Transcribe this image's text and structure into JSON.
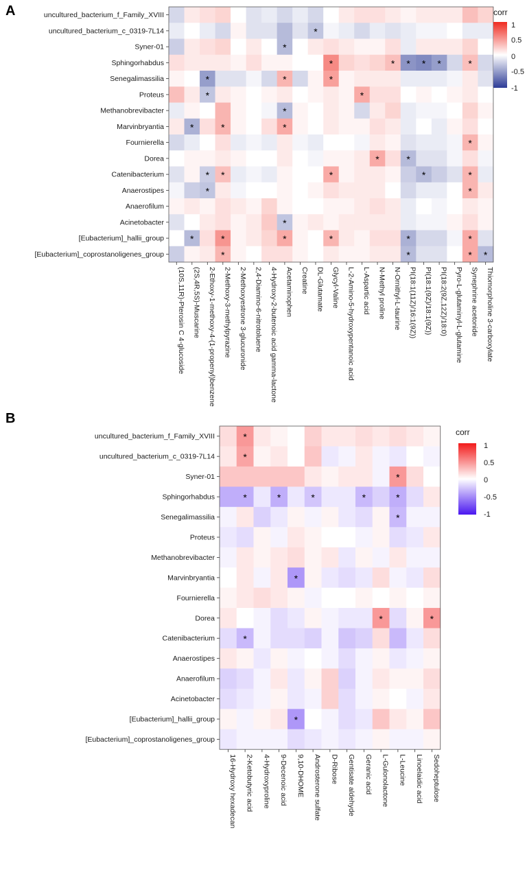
{
  "chart_data": [
    {
      "panel": "A",
      "type": "heatmap",
      "legend_title": "corr",
      "legend_ticks": [
        "1",
        "0.5",
        "0",
        "-0.5",
        "-1"
      ],
      "color_scale": {
        "low": "#2d3c96",
        "mid": "#ffffff",
        "high": "#ef2b20",
        "min": -1,
        "max": 1
      },
      "rows": [
        "uncultured_bacterium_f_Family_XVIII",
        "uncultured_bacterium_c_0319-7L14",
        "Syner-01",
        "Sphingorhabdus",
        "Senegalimassilia",
        "Proteus",
        "Methanobrevibacter",
        "Marvinbryantia",
        "Fournierella",
        "Dorea",
        "Catenibacterium",
        "Anaerostipes",
        "Anaerofilum",
        "Acinetobacter",
        "[Eubacterium]_hallii_group",
        "[Eubacterium]_coprostanoligenes_group"
      ],
      "columns": [
        "(10S,11R)-Pterosin C 4-glucoside",
        "(2S,4R,5S)-Muscarine",
        "2-Ethoxy-1-methoxy-4-(1-propenyl)benzene",
        "2-Methoxy-3-methylpyrazine",
        "2-Methoxyestrone 3-glucuronide",
        "2,4-Diamino-6-nitrotoluene",
        "4-Hydroxy-2-butenoic acid gamma-lactone",
        "Acetaminophen",
        "Creatine",
        "DL-Glutamate",
        "Glycyl-Valine",
        "L-2-Amino-5-hydroxypentanoic acid",
        "L-Aspartic acid",
        "N-Methyl proline",
        "N-Ornithyl-L-taurine",
        "PI(18:1(11Z)/16:1(9Z))",
        "PI(18:1(9Z)/18:1(9Z))",
        "PI(18:2(9Z,12Z)/18:0)",
        "Pyro-L-glutaminyl-L-glutamine",
        "Synephrine acetonide",
        "Thiomorpholine 3-carboxylate"
      ],
      "values": [
        [
          -0.2,
          0.1,
          0.15,
          0.2,
          0.0,
          -0.15,
          -0.1,
          -0.2,
          -0.1,
          -0.2,
          0.0,
          0.1,
          0.15,
          0.15,
          0.1,
          0.05,
          0.1,
          0.1,
          0.1,
          0.3,
          0.2
        ],
        [
          -0.1,
          0.0,
          -0.1,
          -0.2,
          0.05,
          -0.15,
          -0.15,
          -0.35,
          -0.15,
          -0.3,
          -0.05,
          -0.1,
          -0.2,
          -0.1,
          -0.15,
          -0.1,
          -0.05,
          -0.05,
          0.0,
          -0.1,
          -0.1
        ],
        [
          -0.25,
          0.1,
          0.15,
          0.2,
          0.0,
          0.1,
          0.0,
          -0.35,
          0.0,
          0.1,
          0.15,
          0.1,
          0.05,
          0.05,
          0.15,
          -0.1,
          0.1,
          0.1,
          0.1,
          0.2,
          0.0
        ],
        [
          0.15,
          0.1,
          0.1,
          0.1,
          0.05,
          0.15,
          0.05,
          0.05,
          0.0,
          0.0,
          0.55,
          0.2,
          0.15,
          0.2,
          0.3,
          -0.55,
          -0.6,
          -0.5,
          -0.2,
          0.3,
          -0.2
        ],
        [
          0.05,
          0.0,
          -0.5,
          -0.15,
          -0.15,
          -0.05,
          -0.2,
          0.35,
          -0.2,
          0.05,
          0.45,
          0.05,
          0.1,
          0.1,
          0.1,
          -0.1,
          -0.1,
          -0.1,
          -0.05,
          0.1,
          -0.15
        ],
        [
          0.3,
          0.1,
          -0.3,
          0.1,
          0.05,
          0.0,
          0.05,
          0.1,
          0.0,
          0.05,
          0.1,
          0.05,
          0.4,
          0.15,
          0.15,
          0.0,
          0.05,
          0.0,
          0.05,
          0.1,
          0.0
        ],
        [
          -0.1,
          0.05,
          0.0,
          0.35,
          0.05,
          0.0,
          -0.05,
          -0.35,
          0.05,
          0.0,
          0.1,
          0.05,
          -0.2,
          0.1,
          0.2,
          -0.1,
          -0.05,
          -0.05,
          0.0,
          0.2,
          0.05
        ],
        [
          0.1,
          -0.4,
          0.15,
          0.35,
          0.05,
          0.0,
          0.15,
          0.4,
          0.05,
          0.0,
          0.1,
          0.05,
          0.05,
          0.15,
          0.1,
          -0.1,
          0.0,
          -0.1,
          0.05,
          0.15,
          0.0
        ],
        [
          -0.2,
          -0.1,
          0.0,
          0.15,
          -0.1,
          -0.05,
          -0.1,
          0.1,
          -0.05,
          -0.1,
          0.0,
          0.0,
          -0.05,
          0.1,
          0.05,
          -0.15,
          -0.1,
          -0.1,
          -0.05,
          0.35,
          0.05
        ],
        [
          0.0,
          0.05,
          0.05,
          0.1,
          0.05,
          0.0,
          0.0,
          0.1,
          0.0,
          -0.05,
          0.05,
          0.05,
          0.1,
          0.4,
          0.15,
          -0.35,
          -0.15,
          -0.15,
          -0.05,
          0.15,
          -0.05
        ],
        [
          -0.15,
          0.05,
          -0.25,
          0.3,
          -0.1,
          -0.05,
          -0.1,
          0.05,
          0.0,
          0.0,
          0.4,
          0.05,
          0.1,
          0.1,
          0.05,
          -0.25,
          -0.35,
          -0.25,
          -0.15,
          0.35,
          -0.1
        ],
        [
          -0.05,
          -0.25,
          -0.3,
          0.1,
          -0.05,
          0.0,
          0.0,
          0.05,
          0.0,
          0.05,
          0.15,
          0.1,
          0.1,
          0.1,
          0.0,
          -0.2,
          -0.1,
          -0.1,
          0.0,
          0.35,
          0.1
        ],
        [
          0.05,
          0.1,
          0.05,
          0.15,
          0.1,
          0.05,
          0.2,
          0.05,
          0.0,
          0.0,
          0.05,
          0.05,
          0.1,
          0.15,
          0.1,
          -0.1,
          0.0,
          -0.05,
          0.0,
          0.1,
          0.05
        ],
        [
          -0.15,
          0.0,
          0.1,
          0.15,
          0.05,
          0.1,
          0.25,
          -0.3,
          0.05,
          0.1,
          0.05,
          0.1,
          0.1,
          0.1,
          0.1,
          -0.1,
          -0.05,
          -0.05,
          0.05,
          0.15,
          0.05
        ],
        [
          0.0,
          -0.35,
          0.15,
          0.5,
          0.05,
          0.1,
          0.2,
          0.4,
          0.05,
          0.0,
          0.35,
          0.1,
          0.05,
          0.15,
          0.15,
          -0.4,
          -0.2,
          -0.2,
          -0.05,
          0.4,
          -0.15
        ],
        [
          -0.25,
          0.05,
          0.1,
          0.35,
          0.05,
          0.0,
          0.15,
          0.15,
          0.05,
          0.0,
          0.1,
          0.05,
          0.05,
          0.1,
          0.1,
          -0.35,
          -0.15,
          -0.15,
          0.0,
          0.4,
          -0.35
        ]
      ],
      "significant": [
        [],
        [
          9
        ],
        [
          7
        ],
        [
          10,
          14,
          15,
          16,
          17,
          19
        ],
        [
          2,
          7,
          10
        ],
        [
          2,
          12
        ],
        [
          7
        ],
        [
          1,
          3,
          7
        ],
        [
          19
        ],
        [
          13,
          15
        ],
        [
          2,
          3,
          10,
          16,
          19
        ],
        [
          2,
          19
        ],
        [],
        [
          7
        ],
        [
          1,
          3,
          7,
          10,
          15,
          19
        ],
        [
          3,
          15,
          19,
          20
        ]
      ]
    },
    {
      "panel": "B",
      "type": "heatmap",
      "legend_title": "corr",
      "legend_ticks": [
        "1",
        "0.5",
        "0",
        "-0.5",
        "-1"
      ],
      "color_scale": {
        "low": "#4a17f0",
        "mid": "#ffffff",
        "high": "#f21b1b",
        "min": -1,
        "max": 1
      },
      "rows": [
        "uncultured_bacterium_f_Family_XVIII",
        "uncultured_bacterium_c_0319-7L14",
        "Syner-01",
        "Sphingorhabdus",
        "Senegalimassilia",
        "Proteus",
        "Methanobrevibacter",
        "Marvinbryantia",
        "Fournierella",
        "Dorea",
        "Catenibacterium",
        "Anaerostipes",
        "Anaerofilum",
        "Acinetobacter",
        "[Eubacterium]_hallii_group",
        "[Eubacterium]_coprostanoligenes_group"
      ],
      "columns": [
        "16-Hydroxy hexadecan",
        "2-Ketobutyric acid",
        "4-Hydroxyproline",
        "9-Decenoic acid",
        "9,10-DHOME",
        "Androsterone sulfate",
        "D-Ribose",
        "Gentisate aldehyde",
        "Geranic acid",
        "L-Gulonolactone",
        "L-Leucine",
        "Linoelaidic acid",
        "Sedoheptulose"
      ],
      "values": [
        [
          0.15,
          0.45,
          0.1,
          0.05,
          0.0,
          0.2,
          0.1,
          0.1,
          0.15,
          0.1,
          0.15,
          0.1,
          0.05
        ],
        [
          0.1,
          0.4,
          0.05,
          0.1,
          0.0,
          0.25,
          -0.1,
          -0.05,
          0.1,
          -0.05,
          -0.1,
          0.0,
          -0.05
        ],
        [
          0.25,
          0.25,
          0.25,
          0.25,
          0.25,
          0.1,
          0.05,
          0.1,
          0.1,
          -0.05,
          0.45,
          0.15,
          0.0
        ],
        [
          -0.35,
          -0.35,
          -0.1,
          -0.35,
          -0.1,
          -0.25,
          -0.1,
          -0.1,
          -0.3,
          -0.2,
          -0.35,
          -0.15,
          0.1
        ],
        [
          -0.05,
          0.1,
          -0.2,
          -0.1,
          0.05,
          -0.05,
          0.05,
          -0.1,
          -0.15,
          0.05,
          -0.3,
          -0.05,
          -0.05
        ],
        [
          -0.1,
          -0.15,
          0.05,
          -0.05,
          0.1,
          0.05,
          0.0,
          0.0,
          -0.05,
          0.05,
          -0.15,
          -0.1,
          0.1
        ],
        [
          -0.05,
          0.1,
          0.05,
          0.1,
          0.15,
          0.05,
          0.1,
          -0.1,
          0.05,
          -0.05,
          0.1,
          -0.05,
          -0.05
        ],
        [
          0.0,
          0.1,
          -0.05,
          0.1,
          -0.45,
          0.05,
          -0.1,
          -0.15,
          -0.1,
          0.15,
          -0.05,
          -0.1,
          0.15
        ],
        [
          0.05,
          0.1,
          0.15,
          0.1,
          0.05,
          -0.05,
          0.0,
          0.0,
          0.05,
          0.0,
          0.05,
          0.0,
          0.05
        ],
        [
          0.1,
          0.0,
          -0.05,
          -0.15,
          -0.1,
          0.05,
          -0.05,
          -0.1,
          -0.1,
          0.45,
          -0.15,
          0.05,
          0.45
        ],
        [
          -0.15,
          -0.3,
          -0.05,
          -0.15,
          -0.15,
          -0.2,
          -0.05,
          -0.25,
          -0.2,
          0.15,
          -0.3,
          -0.1,
          0.15
        ],
        [
          0.1,
          0.05,
          -0.1,
          0.05,
          -0.05,
          0.0,
          -0.05,
          -0.15,
          -0.05,
          0.05,
          -0.1,
          -0.05,
          0.05
        ],
        [
          -0.2,
          -0.15,
          -0.05,
          0.1,
          -0.1,
          0.05,
          0.2,
          -0.2,
          -0.05,
          0.1,
          0.05,
          0.05,
          0.15
        ],
        [
          -0.15,
          -0.1,
          -0.05,
          0.05,
          -0.1,
          -0.05,
          0.2,
          -0.15,
          -0.05,
          0.05,
          0.0,
          -0.05,
          0.1
        ],
        [
          0.05,
          -0.05,
          0.05,
          0.1,
          -0.45,
          0.0,
          -0.05,
          -0.15,
          -0.1,
          0.25,
          0.1,
          0.05,
          0.25
        ],
        [
          -0.1,
          -0.05,
          -0.05,
          -0.05,
          -0.15,
          -0.1,
          -0.05,
          -0.1,
          -0.05,
          0.05,
          -0.05,
          -0.05,
          0.05
        ]
      ],
      "significant": [
        [
          1
        ],
        [
          1
        ],
        [
          10
        ],
        [
          1,
          3,
          5,
          8,
          10
        ],
        [
          10
        ],
        [],
        [],
        [
          4
        ],
        [],
        [
          9,
          12
        ],
        [
          1
        ],
        [],
        [],
        [],
        [
          4
        ],
        []
      ]
    }
  ]
}
